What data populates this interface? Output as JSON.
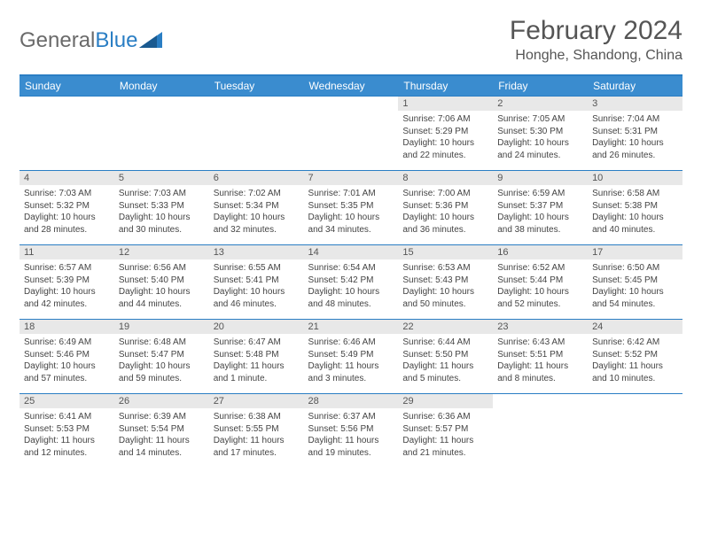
{
  "brand": {
    "name_part1": "General",
    "name_part2": "Blue"
  },
  "title": "February 2024",
  "location": "Honghe, Shandong, China",
  "colors": {
    "header_bg": "#3a8ccf",
    "accent": "#2a7ec4",
    "daynum_bg": "#e8e8e8",
    "text": "#555555"
  },
  "day_labels": [
    "Sunday",
    "Monday",
    "Tuesday",
    "Wednesday",
    "Thursday",
    "Friday",
    "Saturday"
  ],
  "weeks": [
    [
      null,
      null,
      null,
      null,
      {
        "n": "1",
        "sunrise": "Sunrise: 7:06 AM",
        "sunset": "Sunset: 5:29 PM",
        "daylight": "Daylight: 10 hours and 22 minutes."
      },
      {
        "n": "2",
        "sunrise": "Sunrise: 7:05 AM",
        "sunset": "Sunset: 5:30 PM",
        "daylight": "Daylight: 10 hours and 24 minutes."
      },
      {
        "n": "3",
        "sunrise": "Sunrise: 7:04 AM",
        "sunset": "Sunset: 5:31 PM",
        "daylight": "Daylight: 10 hours and 26 minutes."
      }
    ],
    [
      {
        "n": "4",
        "sunrise": "Sunrise: 7:03 AM",
        "sunset": "Sunset: 5:32 PM",
        "daylight": "Daylight: 10 hours and 28 minutes."
      },
      {
        "n": "5",
        "sunrise": "Sunrise: 7:03 AM",
        "sunset": "Sunset: 5:33 PM",
        "daylight": "Daylight: 10 hours and 30 minutes."
      },
      {
        "n": "6",
        "sunrise": "Sunrise: 7:02 AM",
        "sunset": "Sunset: 5:34 PM",
        "daylight": "Daylight: 10 hours and 32 minutes."
      },
      {
        "n": "7",
        "sunrise": "Sunrise: 7:01 AM",
        "sunset": "Sunset: 5:35 PM",
        "daylight": "Daylight: 10 hours and 34 minutes."
      },
      {
        "n": "8",
        "sunrise": "Sunrise: 7:00 AM",
        "sunset": "Sunset: 5:36 PM",
        "daylight": "Daylight: 10 hours and 36 minutes."
      },
      {
        "n": "9",
        "sunrise": "Sunrise: 6:59 AM",
        "sunset": "Sunset: 5:37 PM",
        "daylight": "Daylight: 10 hours and 38 minutes."
      },
      {
        "n": "10",
        "sunrise": "Sunrise: 6:58 AM",
        "sunset": "Sunset: 5:38 PM",
        "daylight": "Daylight: 10 hours and 40 minutes."
      }
    ],
    [
      {
        "n": "11",
        "sunrise": "Sunrise: 6:57 AM",
        "sunset": "Sunset: 5:39 PM",
        "daylight": "Daylight: 10 hours and 42 minutes."
      },
      {
        "n": "12",
        "sunrise": "Sunrise: 6:56 AM",
        "sunset": "Sunset: 5:40 PM",
        "daylight": "Daylight: 10 hours and 44 minutes."
      },
      {
        "n": "13",
        "sunrise": "Sunrise: 6:55 AM",
        "sunset": "Sunset: 5:41 PM",
        "daylight": "Daylight: 10 hours and 46 minutes."
      },
      {
        "n": "14",
        "sunrise": "Sunrise: 6:54 AM",
        "sunset": "Sunset: 5:42 PM",
        "daylight": "Daylight: 10 hours and 48 minutes."
      },
      {
        "n": "15",
        "sunrise": "Sunrise: 6:53 AM",
        "sunset": "Sunset: 5:43 PM",
        "daylight": "Daylight: 10 hours and 50 minutes."
      },
      {
        "n": "16",
        "sunrise": "Sunrise: 6:52 AM",
        "sunset": "Sunset: 5:44 PM",
        "daylight": "Daylight: 10 hours and 52 minutes."
      },
      {
        "n": "17",
        "sunrise": "Sunrise: 6:50 AM",
        "sunset": "Sunset: 5:45 PM",
        "daylight": "Daylight: 10 hours and 54 minutes."
      }
    ],
    [
      {
        "n": "18",
        "sunrise": "Sunrise: 6:49 AM",
        "sunset": "Sunset: 5:46 PM",
        "daylight": "Daylight: 10 hours and 57 minutes."
      },
      {
        "n": "19",
        "sunrise": "Sunrise: 6:48 AM",
        "sunset": "Sunset: 5:47 PM",
        "daylight": "Daylight: 10 hours and 59 minutes."
      },
      {
        "n": "20",
        "sunrise": "Sunrise: 6:47 AM",
        "sunset": "Sunset: 5:48 PM",
        "daylight": "Daylight: 11 hours and 1 minute."
      },
      {
        "n": "21",
        "sunrise": "Sunrise: 6:46 AM",
        "sunset": "Sunset: 5:49 PM",
        "daylight": "Daylight: 11 hours and 3 minutes."
      },
      {
        "n": "22",
        "sunrise": "Sunrise: 6:44 AM",
        "sunset": "Sunset: 5:50 PM",
        "daylight": "Daylight: 11 hours and 5 minutes."
      },
      {
        "n": "23",
        "sunrise": "Sunrise: 6:43 AM",
        "sunset": "Sunset: 5:51 PM",
        "daylight": "Daylight: 11 hours and 8 minutes."
      },
      {
        "n": "24",
        "sunrise": "Sunrise: 6:42 AM",
        "sunset": "Sunset: 5:52 PM",
        "daylight": "Daylight: 11 hours and 10 minutes."
      }
    ],
    [
      {
        "n": "25",
        "sunrise": "Sunrise: 6:41 AM",
        "sunset": "Sunset: 5:53 PM",
        "daylight": "Daylight: 11 hours and 12 minutes."
      },
      {
        "n": "26",
        "sunrise": "Sunrise: 6:39 AM",
        "sunset": "Sunset: 5:54 PM",
        "daylight": "Daylight: 11 hours and 14 minutes."
      },
      {
        "n": "27",
        "sunrise": "Sunrise: 6:38 AM",
        "sunset": "Sunset: 5:55 PM",
        "daylight": "Daylight: 11 hours and 17 minutes."
      },
      {
        "n": "28",
        "sunrise": "Sunrise: 6:37 AM",
        "sunset": "Sunset: 5:56 PM",
        "daylight": "Daylight: 11 hours and 19 minutes."
      },
      {
        "n": "29",
        "sunrise": "Sunrise: 6:36 AM",
        "sunset": "Sunset: 5:57 PM",
        "daylight": "Daylight: 11 hours and 21 minutes."
      },
      null,
      null
    ]
  ]
}
